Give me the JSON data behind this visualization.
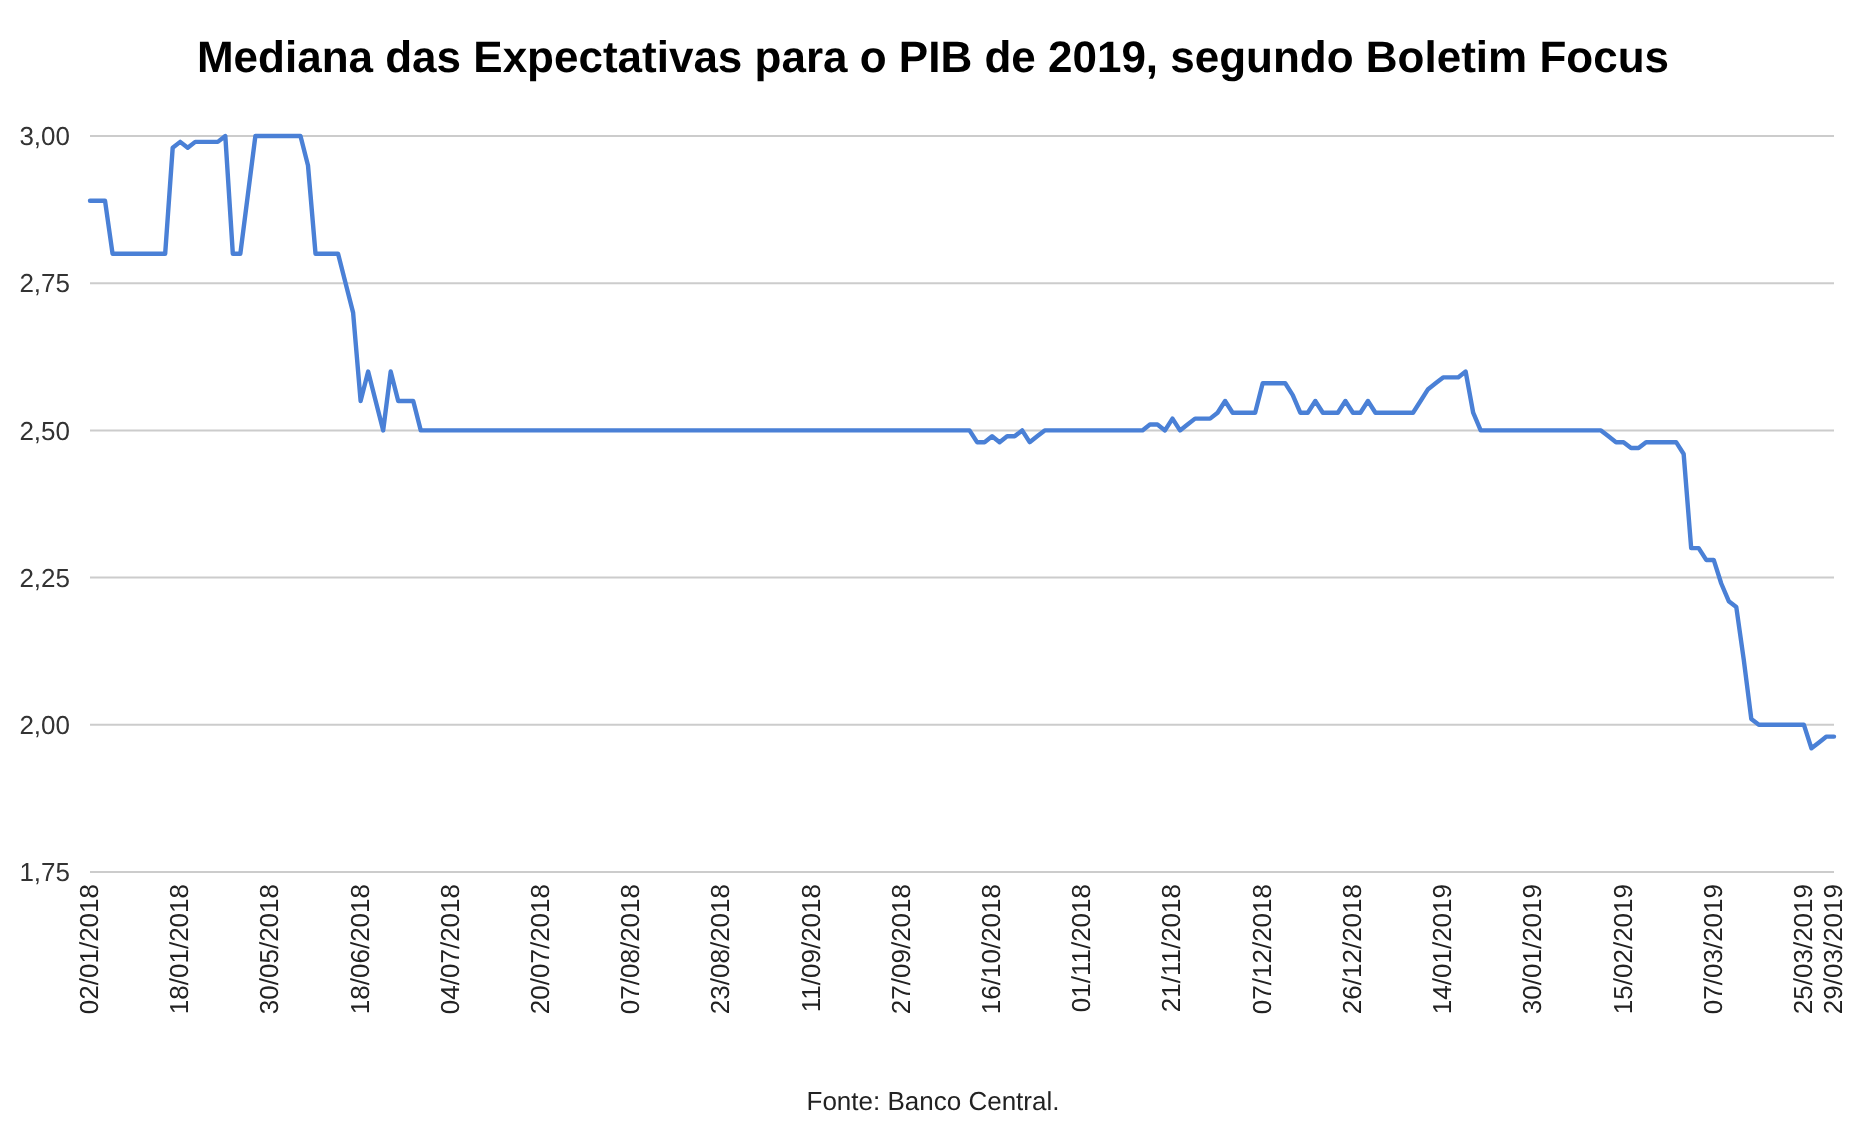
{
  "chart_data": {
    "type": "line",
    "title": "Mediana das Expectativas para o PIB de 2019, segundo Boletim Focus",
    "categories": [
      "02/01/2018",
      null,
      null,
      null,
      null,
      null,
      null,
      null,
      null,
      null,
      null,
      null,
      "18/01/2018",
      null,
      null,
      null,
      null,
      null,
      null,
      null,
      null,
      null,
      null,
      null,
      "30/05/2018",
      null,
      null,
      null,
      null,
      null,
      null,
      null,
      null,
      null,
      null,
      null,
      "18/06/2018",
      null,
      null,
      null,
      null,
      null,
      null,
      null,
      null,
      null,
      null,
      null,
      "04/07/2018",
      null,
      null,
      null,
      null,
      null,
      null,
      null,
      null,
      null,
      null,
      null,
      "20/07/2018",
      null,
      null,
      null,
      null,
      null,
      null,
      null,
      null,
      null,
      null,
      null,
      "07/08/2018",
      null,
      null,
      null,
      null,
      null,
      null,
      null,
      null,
      null,
      null,
      null,
      "23/08/2018",
      null,
      null,
      null,
      null,
      null,
      null,
      null,
      null,
      null,
      null,
      null,
      "11/09/2018",
      null,
      null,
      null,
      null,
      null,
      null,
      null,
      null,
      null,
      null,
      null,
      "27/09/2018",
      null,
      null,
      null,
      null,
      null,
      null,
      null,
      null,
      null,
      null,
      null,
      "16/10/2018",
      null,
      null,
      null,
      null,
      null,
      null,
      null,
      null,
      null,
      null,
      null,
      "01/11/2018",
      null,
      null,
      null,
      null,
      null,
      null,
      null,
      null,
      null,
      null,
      null,
      "21/11/2018",
      null,
      null,
      null,
      null,
      null,
      null,
      null,
      null,
      null,
      null,
      null,
      "07/12/2018",
      null,
      null,
      null,
      null,
      null,
      null,
      null,
      null,
      null,
      null,
      null,
      "26/12/2018",
      null,
      null,
      null,
      null,
      null,
      null,
      null,
      null,
      null,
      null,
      null,
      "14/01/2019",
      null,
      null,
      null,
      null,
      null,
      null,
      null,
      null,
      null,
      null,
      null,
      "30/01/2019",
      null,
      null,
      null,
      null,
      null,
      null,
      null,
      null,
      null,
      null,
      null,
      "15/02/2019",
      null,
      null,
      null,
      null,
      null,
      null,
      null,
      null,
      null,
      null,
      null,
      "07/03/2019",
      null,
      null,
      null,
      null,
      null,
      null,
      null,
      null,
      null,
      null,
      null,
      "25/03/2019",
      null,
      null,
      null,
      "29/03/2019"
    ],
    "series": [
      {
        "color": "#4a80d6",
        "values": [
          2.89,
          2.89,
          2.89,
          2.8,
          2.8,
          2.8,
          2.8,
          2.8,
          2.8,
          2.8,
          2.8,
          2.98,
          2.99,
          2.98,
          2.99,
          2.99,
          2.99,
          2.99,
          3.0,
          2.8,
          2.8,
          2.9,
          3.0,
          3.0,
          3.0,
          3.0,
          3.0,
          3.0,
          3.0,
          2.95,
          2.8,
          2.8,
          2.8,
          2.8,
          2.75,
          2.7,
          2.55,
          2.6,
          2.55,
          2.5,
          2.6,
          2.55,
          2.55,
          2.55,
          2.5,
          2.5,
          2.5,
          2.5,
          2.5,
          2.5,
          2.5,
          2.5,
          2.5,
          2.5,
          2.5,
          2.5,
          2.5,
          2.5,
          2.5,
          2.5,
          2.5,
          2.5,
          2.5,
          2.5,
          2.5,
          2.5,
          2.5,
          2.5,
          2.5,
          2.5,
          2.5,
          2.5,
          2.5,
          2.5,
          2.5,
          2.5,
          2.5,
          2.5,
          2.5,
          2.5,
          2.5,
          2.5,
          2.5,
          2.5,
          2.5,
          2.5,
          2.5,
          2.5,
          2.5,
          2.5,
          2.5,
          2.5,
          2.5,
          2.5,
          2.5,
          2.5,
          2.5,
          2.5,
          2.5,
          2.5,
          2.5,
          2.5,
          2.5,
          2.5,
          2.5,
          2.5,
          2.5,
          2.5,
          2.5,
          2.5,
          2.5,
          2.5,
          2.5,
          2.5,
          2.5,
          2.5,
          2.5,
          2.5,
          2.48,
          2.48,
          2.49,
          2.48,
          2.49,
          2.49,
          2.5,
          2.48,
          2.49,
          2.5,
          2.5,
          2.5,
          2.5,
          2.5,
          2.5,
          2.5,
          2.5,
          2.5,
          2.5,
          2.5,
          2.5,
          2.5,
          2.5,
          2.51,
          2.51,
          2.5,
          2.52,
          2.5,
          2.51,
          2.52,
          2.52,
          2.52,
          2.53,
          2.55,
          2.53,
          2.53,
          2.53,
          2.53,
          2.58,
          2.58,
          2.58,
          2.58,
          2.56,
          2.53,
          2.53,
          2.55,
          2.53,
          2.53,
          2.53,
          2.55,
          2.53,
          2.53,
          2.55,
          2.53,
          2.53,
          2.53,
          2.53,
          2.53,
          2.53,
          2.55,
          2.57,
          2.58,
          2.59,
          2.59,
          2.59,
          2.6,
          2.53,
          2.5,
          2.5,
          2.5,
          2.5,
          2.5,
          2.5,
          2.5,
          2.5,
          2.5,
          2.5,
          2.5,
          2.5,
          2.5,
          2.5,
          2.5,
          2.5,
          2.5,
          2.49,
          2.48,
          2.48,
          2.47,
          2.47,
          2.48,
          2.48,
          2.48,
          2.48,
          2.48,
          2.46,
          2.3,
          2.3,
          2.28,
          2.28,
          2.24,
          2.21,
          2.2,
          2.11,
          2.01,
          2.0,
          2.0,
          2.0,
          2.0,
          2.0,
          2.0,
          2.0,
          1.96,
          1.97,
          1.98,
          1.98
        ]
      }
    ],
    "ylim": [
      1.75,
      3.0
    ],
    "yticks": [
      {
        "value": 1.75,
        "label": "1,75"
      },
      {
        "value": 2.0,
        "label": "2,00"
      },
      {
        "value": 2.25,
        "label": "2,25"
      },
      {
        "value": 2.5,
        "label": "2,50"
      },
      {
        "value": 2.75,
        "label": "2,75"
      },
      {
        "value": 3.0,
        "label": "3,00"
      }
    ],
    "grid": "y",
    "annotations": [
      "Fonte: Banco Central."
    ]
  }
}
